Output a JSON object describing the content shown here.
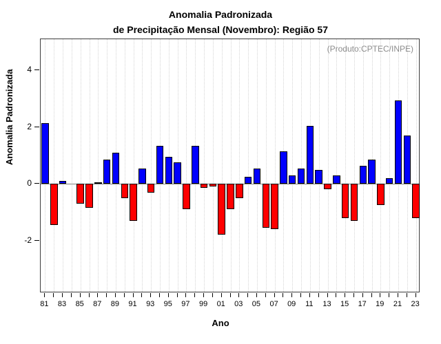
{
  "title": {
    "line1": "Anomalia Padronizada",
    "line2": "de Precipitação Mensal (Novembro): Região 57"
  },
  "annotation": "(Produto:CPTEC/INPE)",
  "chart_data": {
    "type": "bar",
    "title": "Anomalia Padronizada de Precipitação Mensal (Novembro): Região 57",
    "xlabel": "Ano",
    "ylabel": "Anomalia Padronizada",
    "categories": [
      "81",
      "82",
      "83",
      "84",
      "85",
      "86",
      "87",
      "88",
      "89",
      "90",
      "91",
      "92",
      "93",
      "94",
      "95",
      "96",
      "97",
      "98",
      "99",
      "00",
      "01",
      "02",
      "03",
      "04",
      "05",
      "06",
      "07",
      "08",
      "09",
      "10",
      "11",
      "12",
      "13",
      "14",
      "15",
      "16",
      "17",
      "18",
      "19",
      "20",
      "21",
      "22",
      "23"
    ],
    "values": [
      2.15,
      -1.45,
      0.1,
      0.0,
      -0.7,
      -0.85,
      0.05,
      0.85,
      1.1,
      -0.5,
      -1.3,
      0.55,
      -0.3,
      1.35,
      0.95,
      0.75,
      -0.9,
      1.35,
      -0.15,
      -0.1,
      -1.8,
      -0.9,
      -0.5,
      0.25,
      0.55,
      -1.55,
      -1.6,
      1.15,
      0.3,
      0.55,
      2.05,
      0.5,
      -0.2,
      0.3,
      -1.2,
      -1.3,
      0.65,
      0.85,
      -0.75,
      0.2,
      2.95,
      1.7,
      -1.2
    ],
    "x_tick_labels": [
      "81",
      "83",
      "85",
      "87",
      "89",
      "91",
      "93",
      "95",
      "97",
      "99",
      "01",
      "03",
      "05",
      "07",
      "09",
      "11",
      "13",
      "15",
      "17",
      "19",
      "21",
      "23"
    ],
    "yticks": [
      -2,
      0,
      2,
      4
    ],
    "ylim": [
      -3.85,
      5.1
    ],
    "grid": "dotted-vertical",
    "legend_position": "none",
    "colors": {
      "positive_bar": "#0000ff",
      "negative_bar": "#ff0000",
      "zero_line": "#7f7f7f",
      "annotation_text": "#8c8c8c"
    }
  }
}
